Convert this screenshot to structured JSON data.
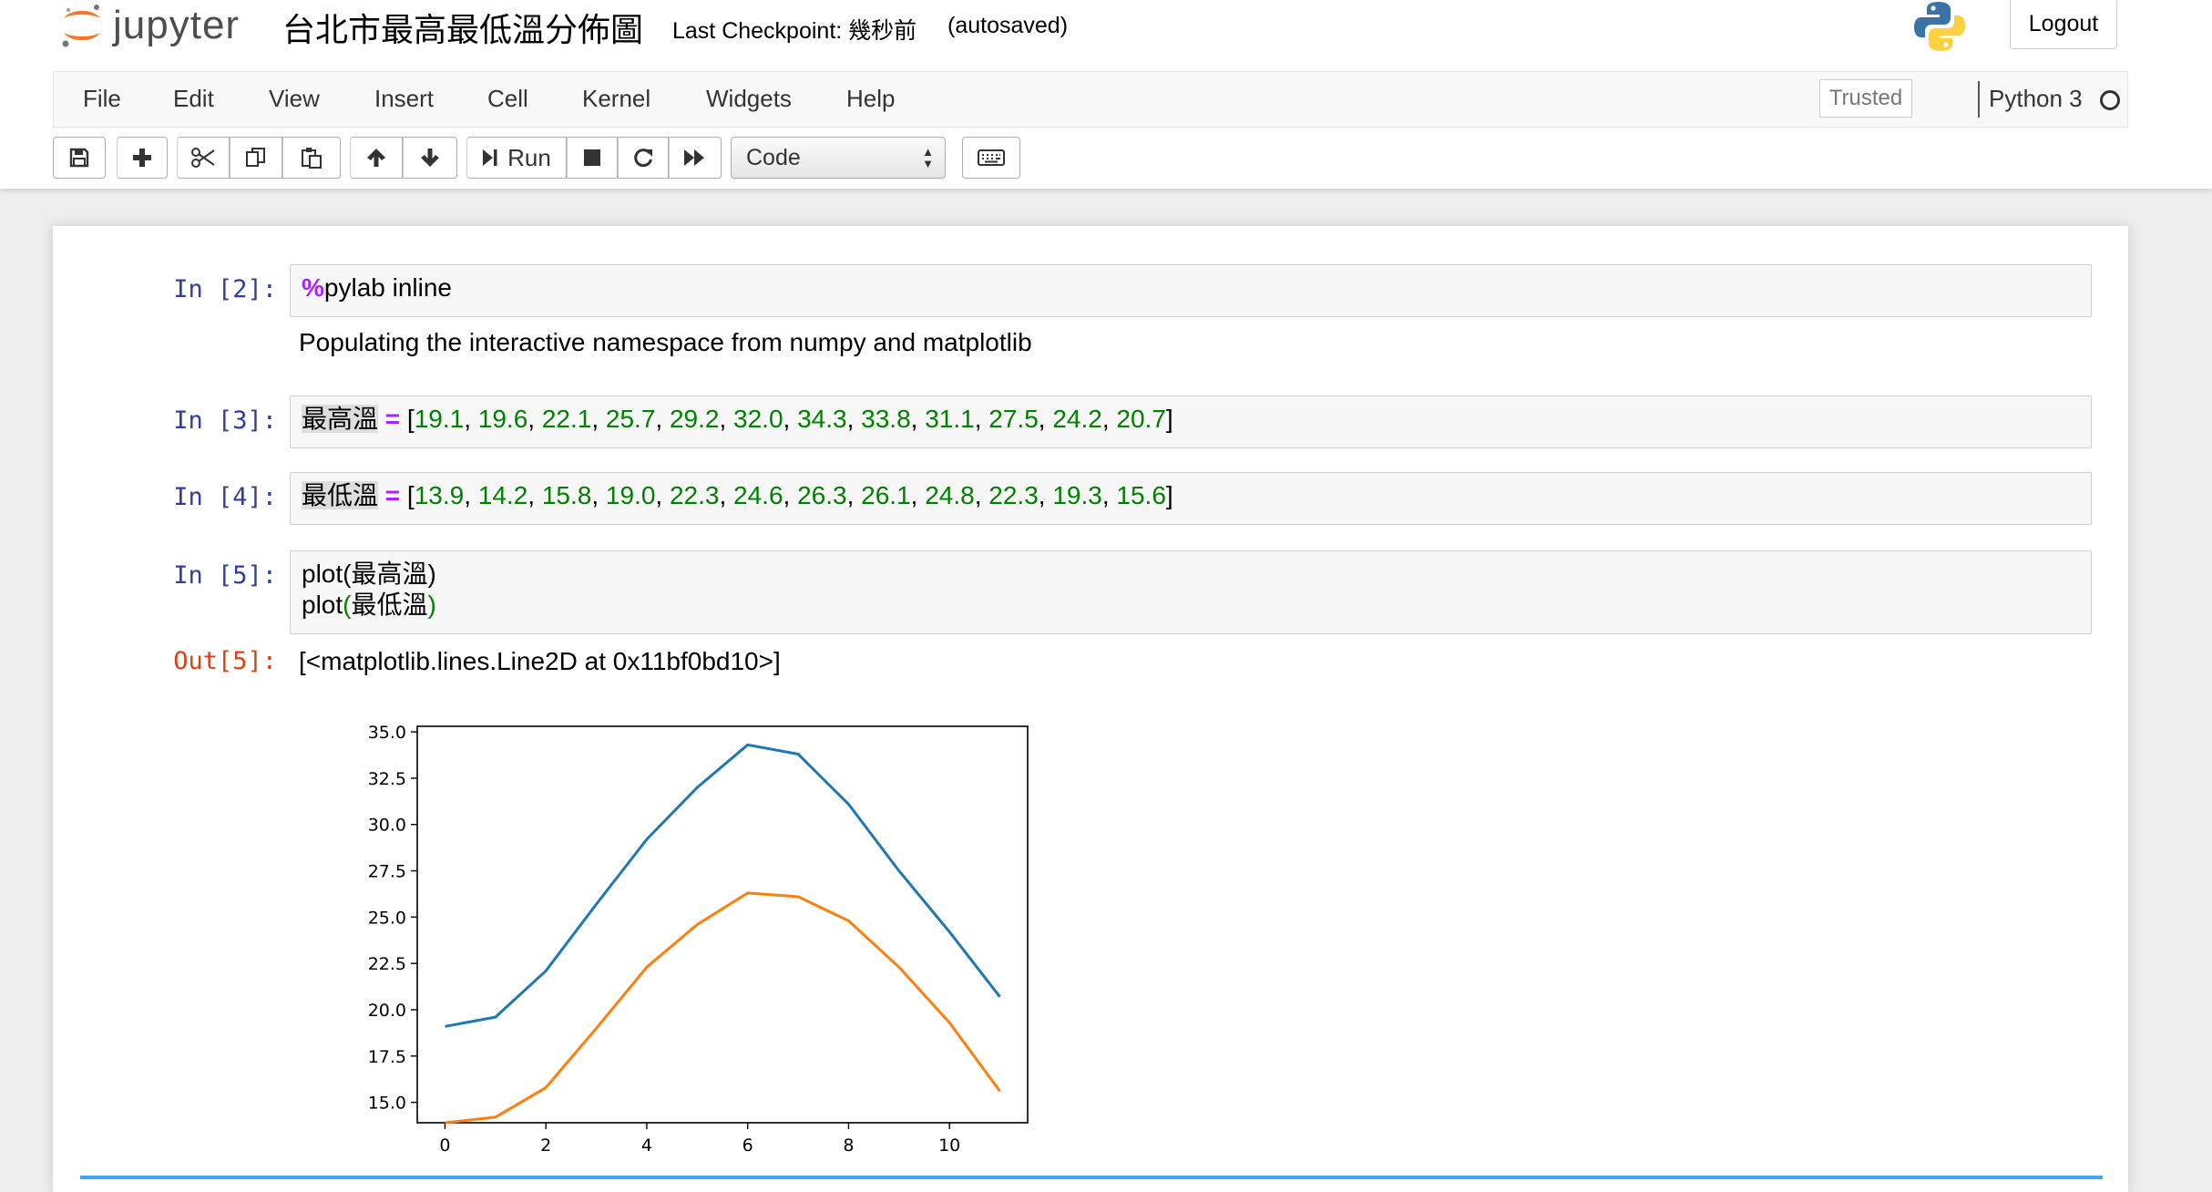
{
  "header": {
    "logo_text": "jupyter",
    "notebook_name": "台北市最高最低溫分佈圖",
    "checkpoint": "Last Checkpoint: 幾秒前",
    "autosave": "(autosaved)",
    "logout": "Logout"
  },
  "menubar": {
    "items": [
      "File",
      "Edit",
      "View",
      "Insert",
      "Cell",
      "Kernel",
      "Widgets",
      "Help"
    ],
    "trusted": "Trusted",
    "kernel": "Python 3"
  },
  "toolbar": {
    "run_label": "Run",
    "cell_type": "Code"
  },
  "cells": [
    {
      "prompt": "In [2]:",
      "code_magic": "%",
      "code_rest": "pylab inline",
      "output": "Populating the interactive namespace from numpy and matplotlib"
    },
    {
      "prompt": "In [3]:",
      "var": "最高溫",
      "op": "=",
      "values": [
        "19.1",
        "19.6",
        "22.1",
        "25.7",
        "29.2",
        "32.0",
        "34.3",
        "33.8",
        "31.1",
        "27.5",
        "24.2",
        "20.7"
      ]
    },
    {
      "prompt": "In [4]:",
      "var": "最低溫",
      "op": "=",
      "values": [
        "13.9",
        "14.2",
        "15.8",
        "19.0",
        "22.3",
        "24.6",
        "26.3",
        "26.1",
        "24.8",
        "22.3",
        "19.3",
        "15.6"
      ]
    },
    {
      "prompt": "In [5]:",
      "line1_a": "plot(",
      "line1_b": "最高溫",
      "line1_c": ")",
      "line2_a": "plot",
      "line2_b": "(",
      "line2_c": "最低溫",
      "line2_d": ")",
      "out_prompt": "Out[5]:",
      "output": "[<matplotlib.lines.Line2D at 0x11bf0bd10>]"
    }
  ],
  "chart_data": {
    "type": "line",
    "x": [
      0,
      1,
      2,
      3,
      4,
      5,
      6,
      7,
      8,
      9,
      10,
      11
    ],
    "series": [
      {
        "values": [
          19.1,
          19.6,
          22.1,
          25.7,
          29.2,
          32.0,
          34.3,
          33.8,
          31.1,
          27.5,
          24.2,
          20.7
        ],
        "color": "#1f77b4"
      },
      {
        "values": [
          13.9,
          14.2,
          15.8,
          19.0,
          22.3,
          24.6,
          26.3,
          26.1,
          24.8,
          22.3,
          19.3,
          15.6
        ],
        "color": "#ff7f0e"
      }
    ],
    "xticks": [
      "0",
      "2",
      "4",
      "6",
      "8",
      "10"
    ],
    "yticks": [
      "15.0",
      "17.5",
      "20.0",
      "22.5",
      "25.0",
      "27.5",
      "30.0",
      "32.5",
      "35.0"
    ],
    "xlim": [
      -0.55,
      11.55
    ],
    "ylim": [
      13.9,
      35.3
    ],
    "grid": false
  }
}
